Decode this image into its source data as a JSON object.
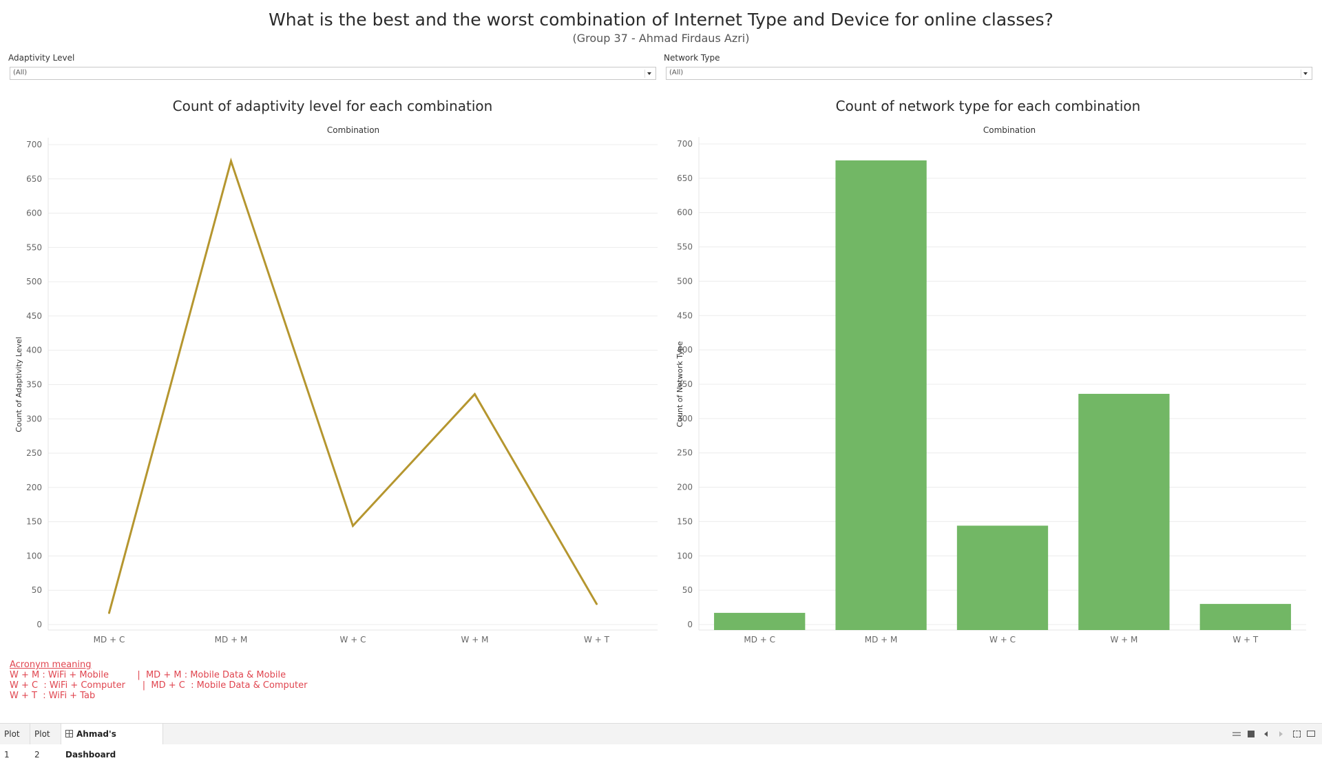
{
  "header": {
    "title": "What is the best and the worst combination of Internet Type and Device for online classes?",
    "subtitle": "(Group 37 - Ahmad Firdaus Azri)"
  },
  "filters": [
    {
      "label": "Adaptivity Level",
      "value": "(All)"
    },
    {
      "label": "Network Type",
      "value": "(All)"
    }
  ],
  "chart_data": [
    {
      "type": "line",
      "title": "Count of adaptivity level for each combination",
      "header": "Combination",
      "ylabel": "Count of Adaptivity Level",
      "xlabel": "",
      "categories": [
        "MD + C",
        "MD + M",
        "W + C",
        "W + M",
        "W + T"
      ],
      "values": [
        17,
        676,
        144,
        336,
        30
      ],
      "ylim": [
        0,
        700
      ],
      "yticks": [
        0,
        50,
        100,
        150,
        200,
        250,
        300,
        350,
        400,
        450,
        500,
        550,
        600,
        650,
        700
      ],
      "color": "#b5962f",
      "grid": true
    },
    {
      "type": "bar",
      "title": "Count of network type for each combination",
      "header": "Combination",
      "ylabel": "Count of Network Type",
      "xlabel": "",
      "categories": [
        "MD + C",
        "MD + M",
        "W + C",
        "W + M",
        "W + T"
      ],
      "values": [
        17,
        676,
        144,
        336,
        30
      ],
      "ylim": [
        0,
        700
      ],
      "yticks": [
        0,
        50,
        100,
        150,
        200,
        250,
        300,
        350,
        400,
        450,
        500,
        550,
        600,
        650,
        700
      ],
      "color": "#72b765",
      "grid": true
    }
  ],
  "acronyms": {
    "title": "Acronym meaning",
    "lines": [
      "W + M : WiFi + Mobile          |  MD + M : Mobile Data & Mobile",
      "W + C  : WiFi + Computer      |  MD + C  : Mobile Data & Computer",
      "W + T  : WiFi + Tab"
    ]
  },
  "tabs": [
    {
      "label": "Plot 1",
      "active": false
    },
    {
      "label": "Plot 2",
      "active": false
    },
    {
      "label": "Ahmad's Dashboard",
      "active": true
    }
  ]
}
